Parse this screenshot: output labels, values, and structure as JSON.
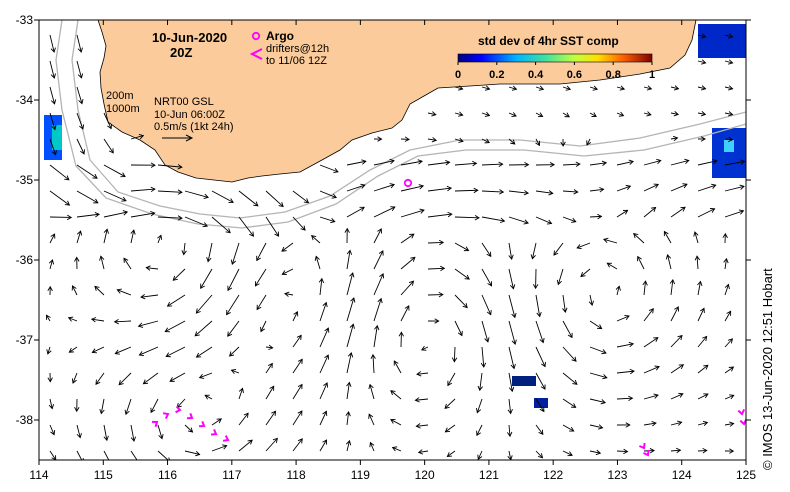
{
  "map": {
    "date": "10-Jun-2020",
    "time": "20Z",
    "legend": {
      "argo_label": "Argo",
      "drifters_label": "drifters@12h",
      "drifters_to": "to 11/06 12Z",
      "argo_color": "#ff00ff",
      "drifter_color": "#ff00ff"
    },
    "colorbar": {
      "title": "std dev of 4hr SST comp",
      "ticks": [
        "0",
        "0.2",
        "0.4",
        "0.6",
        "0.8",
        "1"
      ]
    },
    "contours": [
      "200m",
      "1000m"
    ],
    "product": [
      "NRT00 GSL",
      "10-Jun 06:00Z",
      "0.5m/s (1kt 24h)"
    ],
    "credit": "© IMOS 13-Jun-2020 12:51 Hobart",
    "axes": {
      "x_ticks": [
        "114",
        "115",
        "116",
        "117",
        "118",
        "119",
        "120",
        "121",
        "122",
        "123",
        "124",
        "125"
      ],
      "y_ticks": [
        "-33",
        "-34",
        "-35",
        "-36",
        "-37",
        "-38"
      ],
      "x_range": [
        114,
        125
      ],
      "y_range": [
        -38.5,
        -33
      ]
    },
    "colors": {
      "land": "#fbcb9b",
      "ocean": "#ffffff",
      "contour": "#b4b4b4",
      "arrow": "#000000"
    }
  }
}
